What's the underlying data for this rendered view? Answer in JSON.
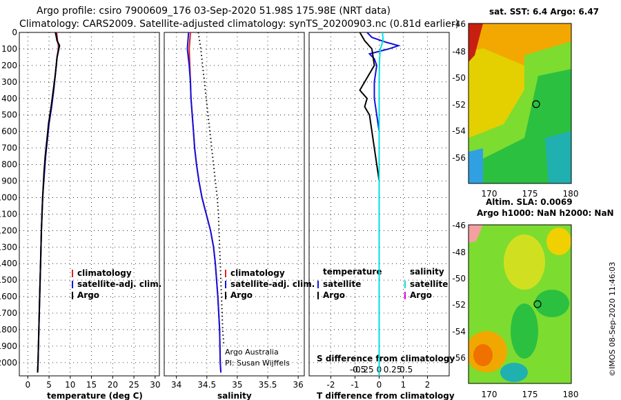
{
  "header": {
    "line1": "Argo profile: csiro 7900609_176 03-Sep-2020 51.98S 175.98E (NRT data)",
    "line2": "Climatology: CARS2009. Satellite-adjusted climatology: synTS_20200903.nc (0.81d earlier)"
  },
  "colors": {
    "climatology": "#e02020",
    "satellite": "#1010e0",
    "argo": "#000000",
    "sal_satellite": "#00e0e0",
    "sal_argo": "#e000e0"
  },
  "chart_data": [
    {
      "type": "line",
      "id": "temperature",
      "xlabel": "temperature (deg C)",
      "ylabel": "",
      "xlim": [
        -2,
        31
      ],
      "ylim": [
        2080,
        0
      ],
      "xticks": [
        0,
        5,
        10,
        15,
        20,
        25,
        30
      ],
      "yticks": [
        0,
        100,
        200,
        300,
        400,
        500,
        600,
        700,
        800,
        900,
        1000,
        1100,
        1200,
        1300,
        1400,
        1500,
        1600,
        1700,
        1800,
        1900,
        2000
      ],
      "legend": [
        "climatology",
        "satellite-adj. clim.",
        "Argo"
      ],
      "series": [
        {
          "name": "climatology",
          "depth": [
            0,
            50,
            80,
            100,
            150,
            250,
            350,
            450,
            550,
            650,
            750,
            850,
            1000,
            1200,
            1400,
            1600,
            1800,
            2000,
            2060
          ],
          "values": [
            6.8,
            7.0,
            7.2,
            7.2,
            6.9,
            6.5,
            6.1,
            5.6,
            5.0,
            4.6,
            4.2,
            3.9,
            3.5,
            3.2,
            3.0,
            2.8,
            2.6,
            2.4,
            2.3
          ]
        },
        {
          "name": "satellite-adj. clim.",
          "depth": [
            0,
            50,
            80,
            100,
            150,
            250,
            350,
            450,
            550,
            650,
            750,
            850,
            1000,
            1200,
            1400,
            1600,
            1800,
            2000,
            2060
          ],
          "values": [
            6.6,
            6.9,
            7.4,
            7.3,
            6.9,
            6.5,
            6.1,
            5.6,
            5.0,
            4.6,
            4.2,
            3.9,
            3.5,
            3.2,
            3.0,
            2.8,
            2.6,
            2.4,
            2.3
          ]
        },
        {
          "name": "Argo",
          "depth": [
            0,
            50,
            80,
            100,
            150,
            250,
            350,
            450,
            550,
            650,
            750,
            850,
            1000,
            1200,
            1400,
            1600,
            1800,
            2000,
            2060
          ],
          "values": [
            6.5,
            6.9,
            7.5,
            7.3,
            6.9,
            6.5,
            6.0,
            5.5,
            4.9,
            4.5,
            4.1,
            3.8,
            3.5,
            3.2,
            3.0,
            2.8,
            2.6,
            2.4,
            2.3
          ]
        }
      ]
    },
    {
      "type": "line",
      "id": "salinity",
      "xlabel": "salinity",
      "ylabel": "",
      "xlim": [
        33.8,
        36.1
      ],
      "ylim": [
        2080,
        0
      ],
      "xticks": [
        34,
        34.5,
        35,
        35.5,
        36
      ],
      "legend": [
        "climatology",
        "satellite-adj. clim.",
        "Argo"
      ],
      "footer": [
        "Argo Australia",
        "PI: Susan Wijffels"
      ],
      "series": [
        {
          "name": "climatology",
          "depth": [
            0,
            100,
            200,
            300,
            400,
            500,
            600,
            700,
            800,
            900,
            1000,
            1100,
            1200,
            1300,
            1400,
            1600,
            1800,
            2000,
            2060
          ],
          "values": [
            34.23,
            34.21,
            34.22,
            34.23,
            34.24,
            34.26,
            34.28,
            34.3,
            34.33,
            34.37,
            34.42,
            34.49,
            34.56,
            34.61,
            34.64,
            34.68,
            34.71,
            34.72,
            34.73
          ]
        },
        {
          "name": "satellite-adj. clim.",
          "depth": [
            0,
            100,
            200,
            300,
            400,
            500,
            600,
            700,
            800,
            900,
            1000,
            1100,
            1200,
            1300,
            1400,
            1600,
            1800,
            2000,
            2060
          ],
          "values": [
            34.2,
            34.18,
            34.21,
            34.23,
            34.24,
            34.26,
            34.28,
            34.3,
            34.33,
            34.37,
            34.42,
            34.49,
            34.56,
            34.61,
            34.64,
            34.68,
            34.71,
            34.72,
            34.73
          ]
        },
        {
          "name": "Argo",
          "depth": [
            0,
            100,
            200,
            300,
            400,
            500,
            600,
            700,
            800,
            900,
            1000,
            1100,
            1200,
            1300,
            1400,
            1600,
            1800,
            1900
          ],
          "values": [
            34.36,
            34.4,
            34.43,
            34.46,
            34.49,
            34.52,
            34.55,
            34.58,
            34.61,
            34.64,
            34.67,
            34.69,
            34.7,
            34.71,
            34.72,
            34.74,
            34.76,
            34.78
          ]
        }
      ]
    },
    {
      "type": "line",
      "id": "difference",
      "xlabel": "T difference from climatology",
      "ylabel": "",
      "top_xlabel": "S difference from climatology",
      "xlim": [
        -2.9,
        2.9
      ],
      "ylim": [
        2080,
        0
      ],
      "xticks": [
        -2,
        -1,
        0,
        1,
        2
      ],
      "top_xticks": [
        "-0.5",
        "-0.25",
        "0",
        "0.25",
        "0.5"
      ],
      "legend_t": [
        "temperature",
        "satellite",
        "Argo"
      ],
      "legend_s": [
        "salinity",
        "satellite",
        "Argo"
      ],
      "series": [
        {
          "name": "T satellite",
          "depth": [
            0,
            30,
            60,
            80,
            100,
            130,
            160,
            200,
            300,
            400,
            500,
            600,
            700,
            800,
            900,
            1000,
            1400,
            1900,
            2060
          ],
          "values": [
            -0.5,
            -0.3,
            0.3,
            0.8,
            0.4,
            -0.4,
            -0.2,
            -0.1,
            -0.2,
            -0.2,
            -0.1,
            0.0,
            0.0,
            0.0,
            0.0,
            0.0,
            0.0,
            0.0,
            0.0
          ]
        },
        {
          "name": "T Argo",
          "depth": [
            0,
            50,
            100,
            200,
            300,
            350,
            400,
            450,
            500,
            600,
            700,
            800,
            850,
            900
          ],
          "values": [
            -0.8,
            -0.6,
            -0.3,
            -0.2,
            -0.6,
            -0.8,
            -0.5,
            -0.6,
            -0.4,
            -0.3,
            -0.2,
            -0.1,
            -0.05,
            0.0
          ]
        },
        {
          "name": "S satellite",
          "depth": [
            0,
            50,
            100,
            150,
            200,
            300,
            500,
            800,
            1200,
            1600,
            1900,
            2060
          ],
          "values": [
            0.14,
            0.16,
            0.05,
            0.02,
            0.01,
            0.0,
            0.0,
            0.0,
            0.0,
            0.0,
            0.0,
            0.0
          ]
        }
      ]
    }
  ],
  "maps": {
    "sst": {
      "title": "sat. SST: 6.4 Argo: 6.47",
      "yticks": [
        "-46",
        "-48",
        "-50",
        "-52",
        "-54",
        "-56"
      ],
      "xticks": [
        "170",
        "175",
        "180"
      ]
    },
    "sla": {
      "title1": "Altim. SLA: 0.0069",
      "title2": "Argo h1000: NaN h2000: NaN",
      "yticks": [
        "-46",
        "-48",
        "-50",
        "-52",
        "-54",
        "-56"
      ],
      "xticks": [
        "170",
        "175",
        "180"
      ]
    },
    "credit": "©IMOS 08-Sep-2020 11:46:03"
  }
}
